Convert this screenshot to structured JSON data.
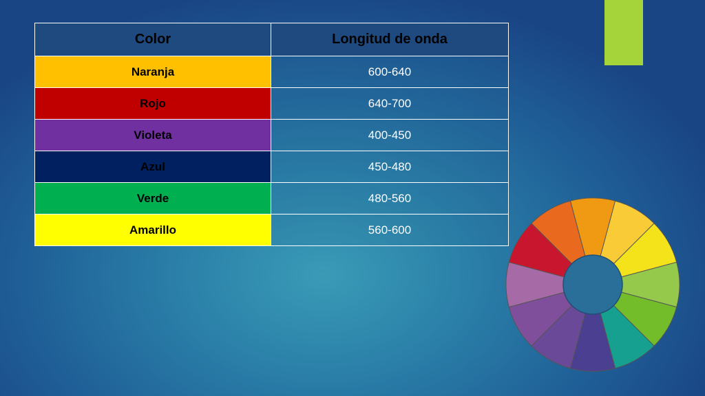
{
  "header": {
    "col_color": "Color",
    "col_wavelength": "Longitud de onda"
  },
  "rows": [
    {
      "name": "Naranja",
      "range": "600-640",
      "swatch": "#ffc000"
    },
    {
      "name": "Rojo",
      "range": "640-700",
      "swatch": "#c00000"
    },
    {
      "name": "Violeta",
      "range": "400-450",
      "swatch": "#7030a0"
    },
    {
      "name": "Azul",
      "range": "450-480",
      "swatch": "#002060"
    },
    {
      "name": "Verde",
      "range": "480-560",
      "swatch": "#00b050"
    },
    {
      "name": "Amarillo",
      "range": "560-600",
      "swatch": "#ffff00"
    }
  ],
  "colors": {
    "accent_bar": "#a5d33a",
    "wheel": [
      "#f09a14",
      "#f9cc37",
      "#f4e31b",
      "#95c94b",
      "#74bd2a",
      "#16a090",
      "#4b3f91",
      "#6a4a98",
      "#7f4f9c",
      "#a66ba7",
      "#c9162f",
      "#e96a1f"
    ]
  }
}
